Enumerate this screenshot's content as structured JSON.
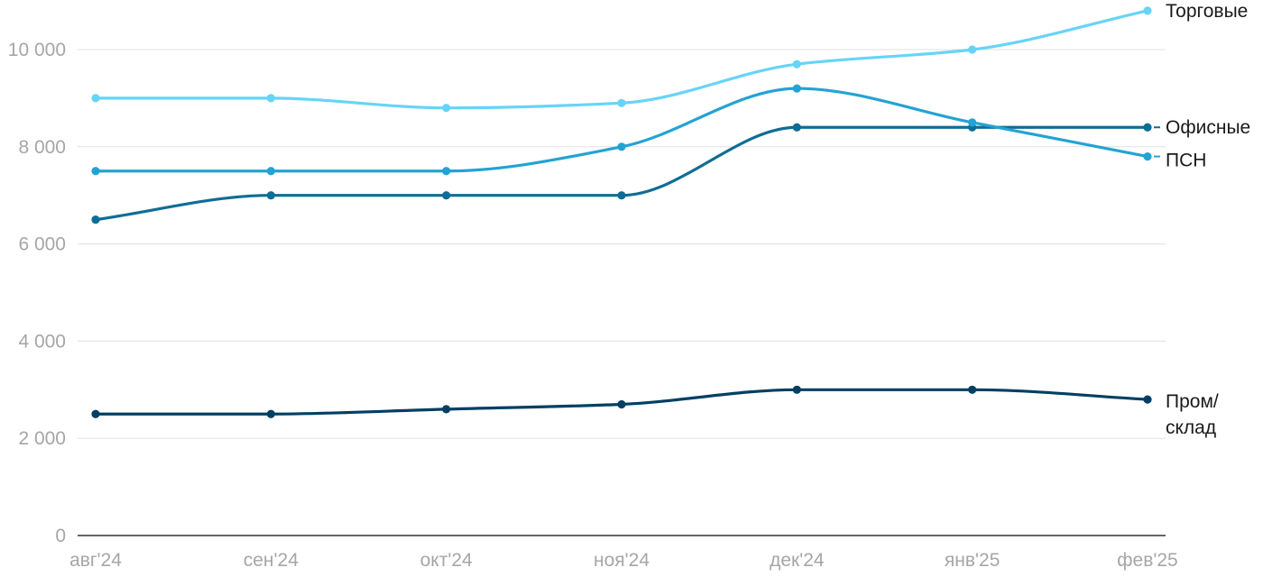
{
  "chart_data": {
    "type": "line",
    "title": "",
    "xlabel": "",
    "ylabel": "",
    "categories": [
      "авг'24",
      "сен'24",
      "окт'24",
      "ноя'24",
      "дек'24",
      "янв'25",
      "фев'25"
    ],
    "ylim": [
      0,
      11000
    ],
    "yticks": [
      0,
      2000,
      4000,
      6000,
      8000,
      10000
    ],
    "ytick_labels": [
      "0",
      "2 000",
      "4 000",
      "6 000",
      "8 000",
      "10 000"
    ],
    "grid": true,
    "legend": "direct labels at line ends (right)",
    "series": [
      {
        "name": "Торговые",
        "color": "#67d4f7",
        "values": [
          9000,
          9000,
          8800,
          8900,
          9700,
          10000,
          10800
        ]
      },
      {
        "name": "Офисные",
        "color": "#0e6d96",
        "values": [
          6500,
          7000,
          7000,
          7000,
          8400,
          8400,
          8400
        ]
      },
      {
        "name": "ПСН",
        "color": "#23a3d3",
        "values": [
          7500,
          7500,
          7500,
          8000,
          9200,
          8500,
          7800
        ]
      },
      {
        "name": "Пром/ склад",
        "color": "#003f63",
        "values": [
          2500,
          2500,
          2600,
          2700,
          3000,
          3000,
          2800
        ]
      }
    ]
  }
}
